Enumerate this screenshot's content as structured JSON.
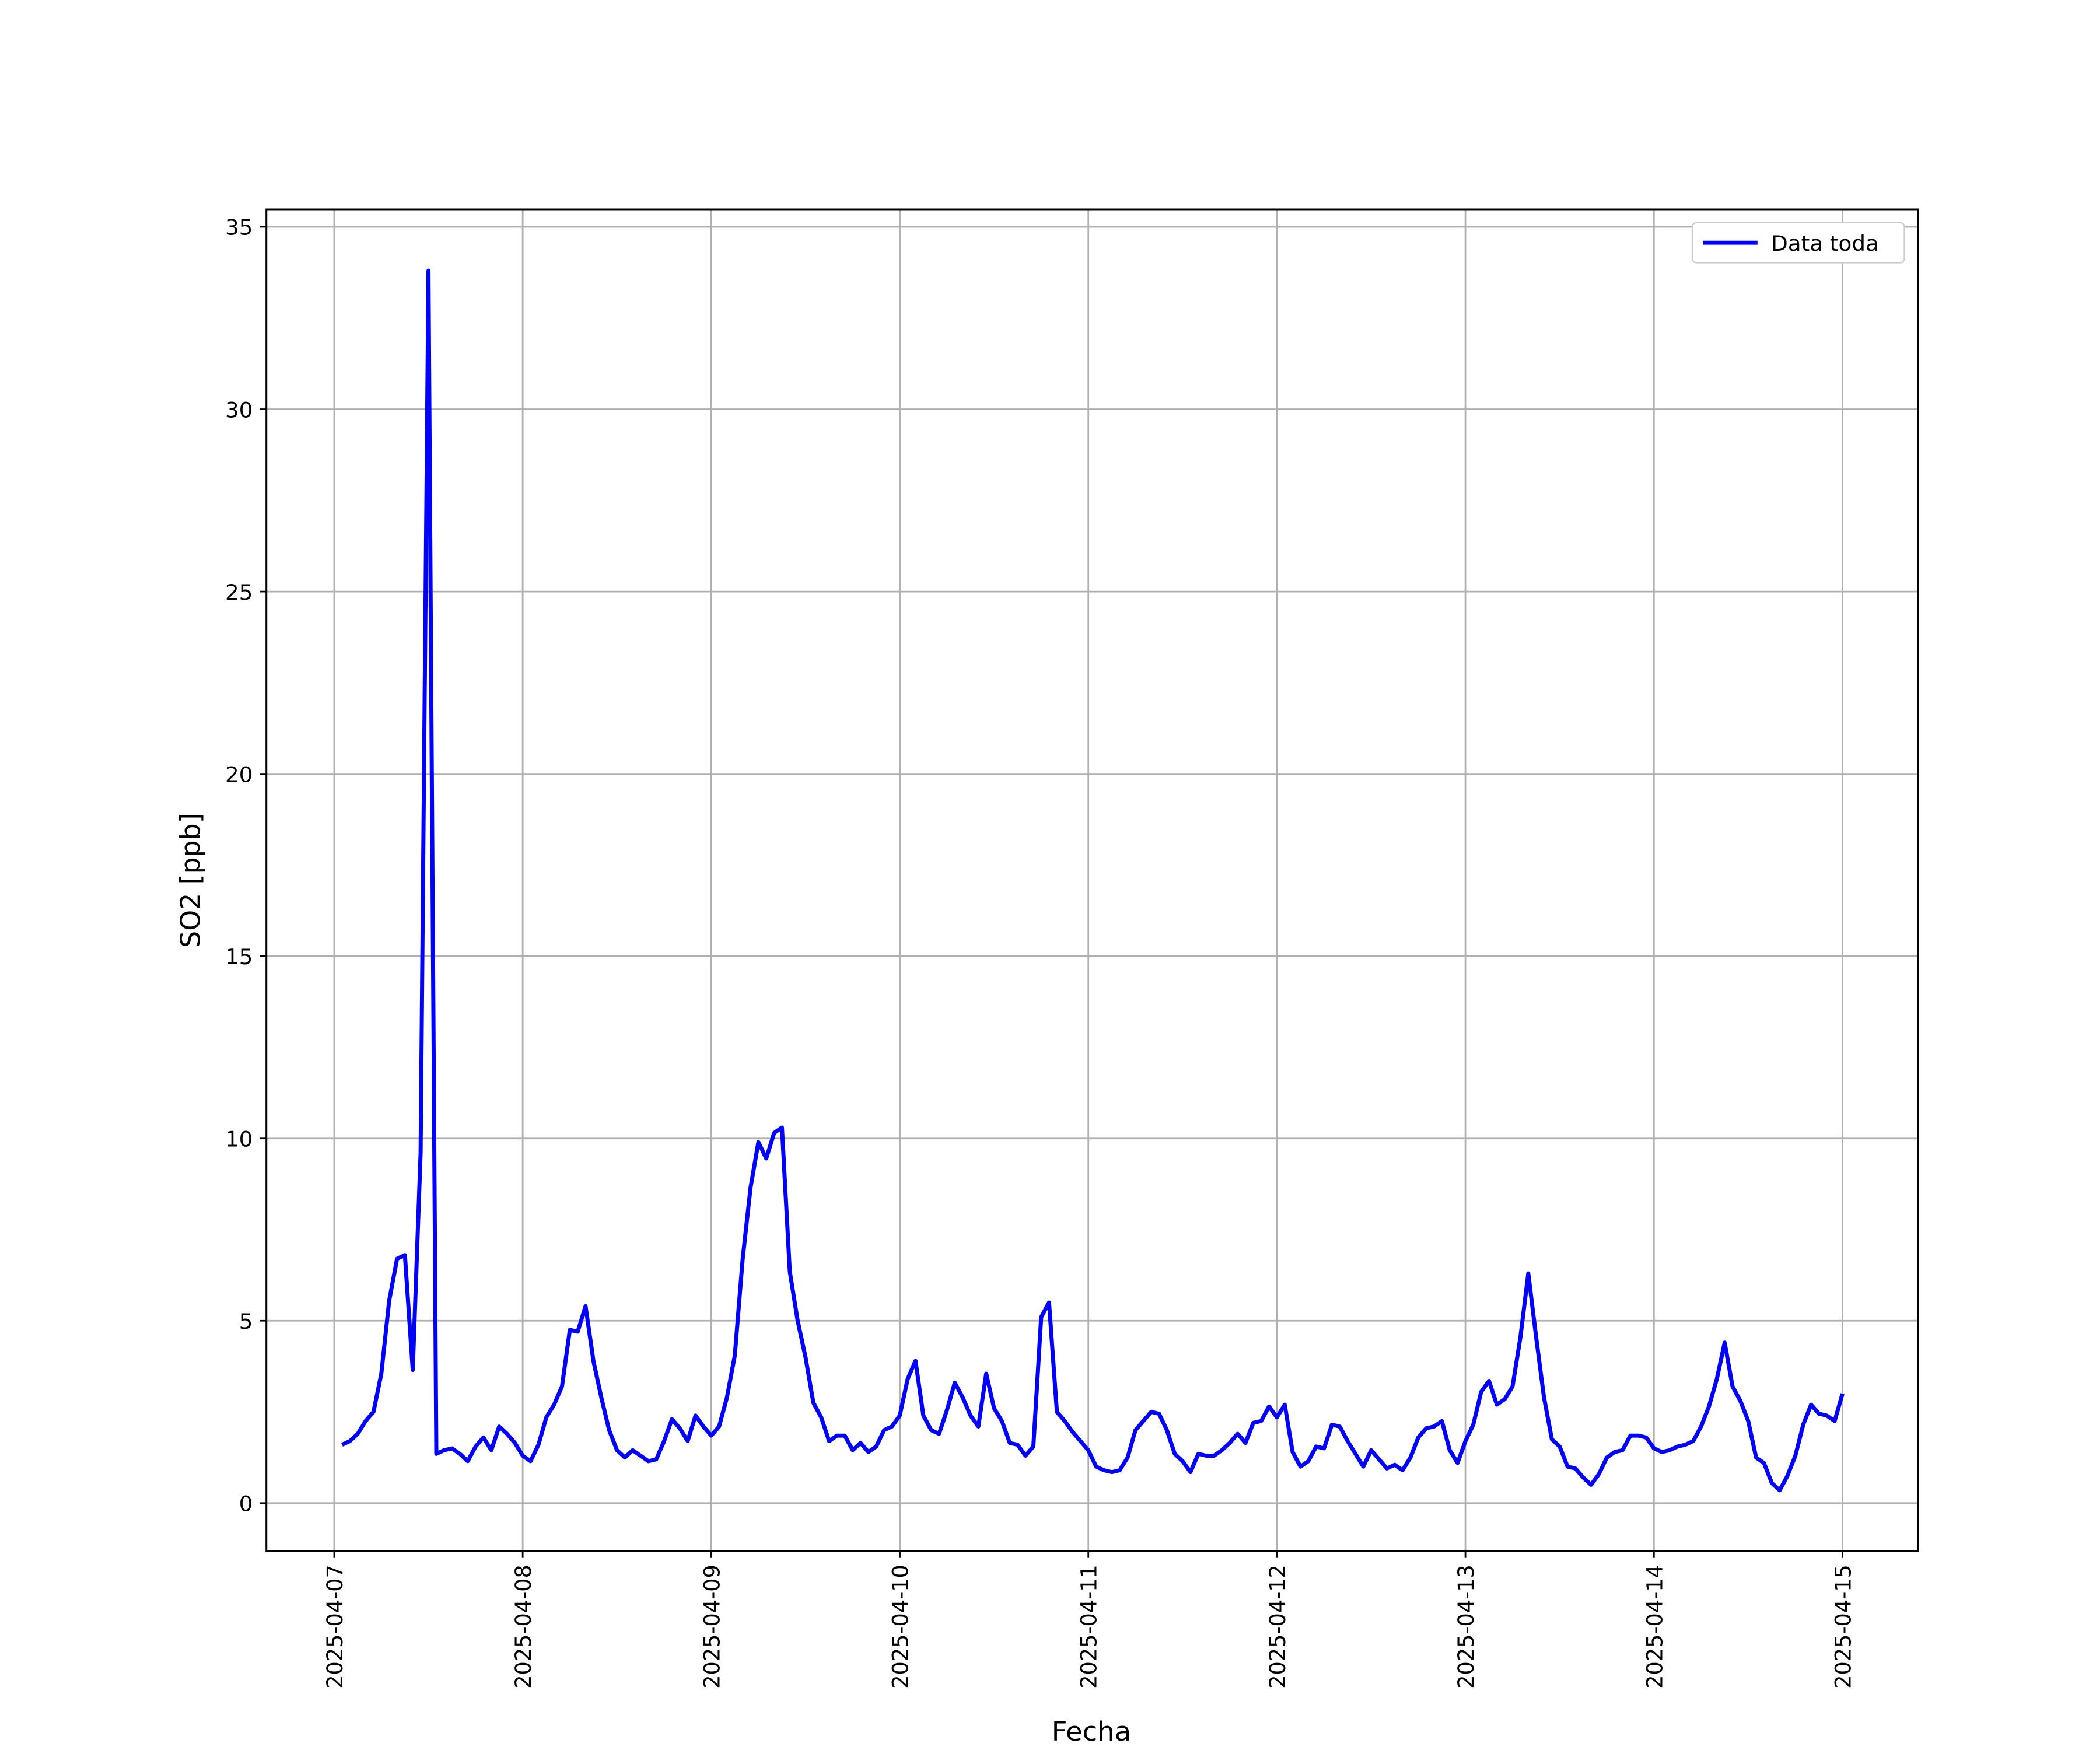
{
  "chart_data": {
    "type": "line",
    "xlabel": "Fecha",
    "ylabel": "SO2 [ppb]",
    "xlim": [
      "2025-04-06 15:22",
      "2025-04-15 09:36"
    ],
    "xticks": [
      "2025-04-07",
      "2025-04-08",
      "2025-04-09",
      "2025-04-10",
      "2025-04-11",
      "2025-04-12",
      "2025-04-13",
      "2025-04-14",
      "2025-04-15"
    ],
    "ylim": [
      -1.32,
      35.48
    ],
    "yticks": [
      0,
      5,
      10,
      15,
      20,
      25,
      30,
      35
    ],
    "grid": true,
    "legend": "upper right",
    "x": [
      "2025-04-07 01:00",
      "2025-04-07 02:00",
      "2025-04-07 03:00",
      "2025-04-07 04:00",
      "2025-04-07 05:00",
      "2025-04-07 06:00",
      "2025-04-07 07:00",
      "2025-04-07 08:00",
      "2025-04-07 09:00",
      "2025-04-07 10:00",
      "2025-04-07 11:00",
      "2025-04-07 12:00",
      "2025-04-07 13:00",
      "2025-04-07 14:00",
      "2025-04-07 15:00",
      "2025-04-07 16:00",
      "2025-04-07 17:00",
      "2025-04-07 18:00",
      "2025-04-07 19:00",
      "2025-04-07 20:00",
      "2025-04-07 21:00",
      "2025-04-07 22:00",
      "2025-04-07 23:00",
      "2025-04-08 00:00",
      "2025-04-08 01:00",
      "2025-04-08 02:00",
      "2025-04-08 03:00",
      "2025-04-08 04:00",
      "2025-04-08 05:00",
      "2025-04-08 06:00",
      "2025-04-08 07:00",
      "2025-04-08 08:00",
      "2025-04-08 09:00",
      "2025-04-08 10:00",
      "2025-04-08 11:00",
      "2025-04-08 12:00",
      "2025-04-08 13:00",
      "2025-04-08 14:00",
      "2025-04-08 15:00",
      "2025-04-08 16:00",
      "2025-04-08 17:00",
      "2025-04-08 18:00",
      "2025-04-08 19:00",
      "2025-04-08 20:00",
      "2025-04-08 21:00",
      "2025-04-08 22:00",
      "2025-04-08 23:00",
      "2025-04-09 00:00",
      "2025-04-09 01:00",
      "2025-04-09 02:00",
      "2025-04-09 03:00",
      "2025-04-09 04:00",
      "2025-04-09 05:00",
      "2025-04-09 06:00",
      "2025-04-09 07:00",
      "2025-04-09 08:00",
      "2025-04-09 09:00",
      "2025-04-09 10:00",
      "2025-04-09 11:00",
      "2025-04-09 12:00",
      "2025-04-09 13:00",
      "2025-04-09 14:00",
      "2025-04-09 15:00",
      "2025-04-09 16:00",
      "2025-04-09 17:00",
      "2025-04-09 18:00",
      "2025-04-09 19:00",
      "2025-04-09 20:00",
      "2025-04-09 21:00",
      "2025-04-09 22:00",
      "2025-04-09 23:00",
      "2025-04-10 00:00",
      "2025-04-10 01:00",
      "2025-04-10 02:00",
      "2025-04-10 03:00",
      "2025-04-10 04:00",
      "2025-04-10 05:00",
      "2025-04-10 06:00",
      "2025-04-10 07:00",
      "2025-04-10 08:00",
      "2025-04-10 09:00",
      "2025-04-10 10:00",
      "2025-04-10 11:00",
      "2025-04-10 12:00",
      "2025-04-10 13:00",
      "2025-04-10 14:00",
      "2025-04-10 15:00",
      "2025-04-10 16:00",
      "2025-04-10 17:00",
      "2025-04-10 18:00",
      "2025-04-10 19:00",
      "2025-04-10 20:00",
      "2025-04-10 21:00",
      "2025-04-10 22:00",
      "2025-04-10 23:00",
      "2025-04-11 00:00",
      "2025-04-11 01:00",
      "2025-04-11 02:00",
      "2025-04-11 03:00",
      "2025-04-11 04:00",
      "2025-04-11 05:00",
      "2025-04-11 06:00",
      "2025-04-11 07:00",
      "2025-04-11 08:00",
      "2025-04-11 09:00",
      "2025-04-11 10:00",
      "2025-04-11 11:00",
      "2025-04-11 12:00",
      "2025-04-11 13:00",
      "2025-04-11 14:00",
      "2025-04-11 15:00",
      "2025-04-11 16:00",
      "2025-04-11 17:00",
      "2025-04-11 18:00",
      "2025-04-11 19:00",
      "2025-04-11 20:00",
      "2025-04-11 21:00",
      "2025-04-11 22:00",
      "2025-04-11 23:00",
      "2025-04-12 00:00",
      "2025-04-12 01:00",
      "2025-04-12 02:00",
      "2025-04-12 03:00",
      "2025-04-12 04:00",
      "2025-04-12 05:00",
      "2025-04-12 06:00",
      "2025-04-12 07:00",
      "2025-04-12 08:00",
      "2025-04-12 09:00",
      "2025-04-12 10:00",
      "2025-04-12 11:00",
      "2025-04-12 12:00",
      "2025-04-12 13:00",
      "2025-04-12 14:00",
      "2025-04-12 15:00",
      "2025-04-12 16:00",
      "2025-04-12 17:00",
      "2025-04-12 18:00",
      "2025-04-12 19:00",
      "2025-04-12 20:00",
      "2025-04-12 21:00",
      "2025-04-12 22:00",
      "2025-04-12 23:00",
      "2025-04-13 00:00",
      "2025-04-13 01:00",
      "2025-04-13 02:00",
      "2025-04-13 03:00",
      "2025-04-13 04:00",
      "2025-04-13 05:00",
      "2025-04-13 06:00",
      "2025-04-13 07:00",
      "2025-04-13 08:00",
      "2025-04-13 09:00",
      "2025-04-13 10:00",
      "2025-04-13 11:00",
      "2025-04-13 12:00",
      "2025-04-13 13:00",
      "2025-04-13 14:00",
      "2025-04-13 15:00",
      "2025-04-13 16:00",
      "2025-04-13 17:00",
      "2025-04-13 18:00",
      "2025-04-13 19:00",
      "2025-04-13 20:00",
      "2025-04-13 21:00",
      "2025-04-13 22:00",
      "2025-04-13 23:00",
      "2025-04-14 00:00",
      "2025-04-14 01:00",
      "2025-04-14 02:00",
      "2025-04-14 03:00",
      "2025-04-14 04:00",
      "2025-04-14 05:00",
      "2025-04-14 06:00",
      "2025-04-14 07:00",
      "2025-04-14 08:00",
      "2025-04-14 09:00",
      "2025-04-14 10:00",
      "2025-04-14 11:00",
      "2025-04-14 12:00",
      "2025-04-14 13:00",
      "2025-04-14 14:00",
      "2025-04-14 15:00",
      "2025-04-14 16:00",
      "2025-04-14 17:00",
      "2025-04-14 18:00",
      "2025-04-14 19:00",
      "2025-04-14 20:00",
      "2025-04-14 21:00",
      "2025-04-14 22:00",
      "2025-04-14 23:00",
      "2025-04-15 00:00"
    ],
    "series": [
      {
        "name": "Data toda",
        "color": "#0000ff",
        "values": [
          1.6,
          1.7,
          1.9,
          2.25,
          2.5,
          3.55,
          5.55,
          6.7,
          6.8,
          3.65,
          9.6,
          33.8,
          1.35,
          1.45,
          1.5,
          1.35,
          1.15,
          1.55,
          1.8,
          1.45,
          2.1,
          1.9,
          1.65,
          1.3,
          1.15,
          1.6,
          2.35,
          2.7,
          3.2,
          4.75,
          4.7,
          5.4,
          3.9,
          2.9,
          2.0,
          1.45,
          1.25,
          1.45,
          1.3,
          1.15,
          1.2,
          1.7,
          2.3,
          2.05,
          1.7,
          2.4,
          2.1,
          1.85,
          2.1,
          2.9,
          4.05,
          6.7,
          8.65,
          9.9,
          9.45,
          10.15,
          10.3,
          6.35,
          5.0,
          4.0,
          2.75,
          2.35,
          1.7,
          1.85,
          1.85,
          1.45,
          1.65,
          1.4,
          1.55,
          2.0,
          2.1,
          2.4,
          3.4,
          3.9,
          2.4,
          2.0,
          1.9,
          2.55,
          3.3,
          2.9,
          2.4,
          2.1,
          3.55,
          2.6,
          2.25,
          1.65,
          1.6,
          1.3,
          1.55,
          5.1,
          5.5,
          2.5,
          2.25,
          1.95,
          1.7,
          1.45,
          1.0,
          0.9,
          0.85,
          0.9,
          1.25,
          2.0,
          2.25,
          2.5,
          2.45,
          2.0,
          1.35,
          1.15,
          0.85,
          1.35,
          1.3,
          1.3,
          1.45,
          1.65,
          1.9,
          1.65,
          2.2,
          2.25,
          2.65,
          2.35,
          2.7,
          1.4,
          1.0,
          1.15,
          1.55,
          1.5,
          2.15,
          2.1,
          1.7,
          1.35,
          1.0,
          1.45,
          1.2,
          0.95,
          1.05,
          0.9,
          1.25,
          1.8,
          2.05,
          2.1,
          2.25,
          1.45,
          1.1,
          1.7,
          2.15,
          3.05,
          3.35,
          2.7,
          2.85,
          3.2,
          4.55,
          6.3,
          4.55,
          2.9,
          1.75,
          1.55,
          1.0,
          0.95,
          0.7,
          0.5,
          0.8,
          1.25,
          1.4,
          1.45,
          1.85,
          1.85,
          1.8,
          1.5,
          1.4,
          1.45,
          1.55,
          1.6,
          1.7,
          2.1,
          2.65,
          3.4,
          4.4,
          3.2,
          2.8,
          2.25,
          1.25,
          1.1,
          0.55,
          0.35,
          0.75,
          1.3,
          2.15,
          2.7,
          2.45,
          2.4,
          2.25,
          3.0
        ]
      }
    ]
  }
}
